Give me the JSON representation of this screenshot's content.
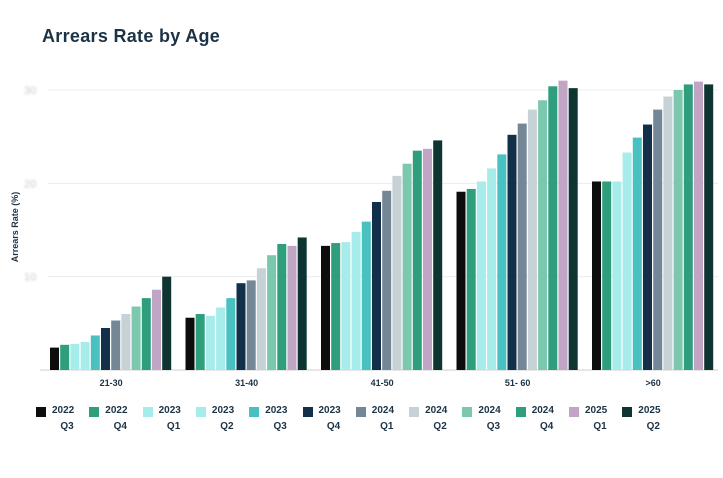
{
  "chart_data": {
    "type": "bar",
    "title": "Arrears Rate by Age",
    "xlabel": "",
    "ylabel": "Arrears Rate (%)",
    "ylim": [
      0,
      30
    ],
    "ytick_values": [
      10,
      20,
      30
    ],
    "grid": true,
    "legend_position": "bottom",
    "categories": [
      "21-30",
      "31-40",
      "41-50",
      "51- 60",
      ">60"
    ],
    "series": [
      {
        "name": "2022 Q3",
        "year": "2022",
        "quarter": "Q3",
        "color": "#0d0d0d",
        "values": [
          2.4,
          5.6,
          13.3,
          19.1,
          20.2
        ]
      },
      {
        "name": "2022 Q4",
        "year": "2022",
        "quarter": "Q4",
        "color": "#2e9e7d",
        "values": [
          2.7,
          6.0,
          13.6,
          19.4,
          20.2
        ]
      },
      {
        "name": "2023 Q1",
        "year": "2023",
        "quarter": "Q1",
        "color": "#a6ecea",
        "values": [
          2.8,
          5.8,
          13.7,
          20.2,
          20.2
        ]
      },
      {
        "name": "2023 Q2",
        "year": "2023",
        "quarter": "Q2",
        "color": "#a6ecea",
        "values": [
          3.0,
          6.7,
          14.8,
          21.6,
          23.3
        ]
      },
      {
        "name": "2023 Q3",
        "year": "2023",
        "quarter": "Q3",
        "color": "#49c1c1",
        "values": [
          3.7,
          7.7,
          15.9,
          23.1,
          24.9
        ]
      },
      {
        "name": "2023 Q4",
        "year": "2023",
        "quarter": "Q4",
        "color": "#12304a",
        "values": [
          4.5,
          9.3,
          18.0,
          25.2,
          26.3
        ]
      },
      {
        "name": "2024 Q1",
        "year": "2024",
        "quarter": "Q1",
        "color": "#748797",
        "values": [
          5.3,
          9.6,
          19.2,
          26.4,
          27.9
        ]
      },
      {
        "name": "2024 Q2",
        "year": "2024",
        "quarter": "Q2",
        "color": "#c7d2d6",
        "values": [
          6.0,
          10.9,
          20.8,
          27.9,
          29.3
        ]
      },
      {
        "name": "2024 Q3",
        "year": "2024",
        "quarter": "Q3",
        "color": "#7cc8ae",
        "values": [
          6.8,
          12.3,
          22.1,
          28.9,
          30.0
        ]
      },
      {
        "name": "2024 Q4",
        "year": "2024",
        "quarter": "Q4",
        "color": "#2e9e7d",
        "values": [
          7.7,
          13.5,
          23.5,
          30.4,
          30.6
        ]
      },
      {
        "name": "2025 Q1",
        "year": "2025",
        "quarter": "Q1",
        "color": "#c1a5c4",
        "values": [
          8.6,
          13.3,
          23.7,
          31.0,
          30.9
        ]
      },
      {
        "name": "2025 Q2",
        "year": "2025",
        "quarter": "Q2",
        "color": "#0f3532",
        "values": [
          10.0,
          14.2,
          24.6,
          30.2,
          30.6
        ]
      }
    ]
  }
}
